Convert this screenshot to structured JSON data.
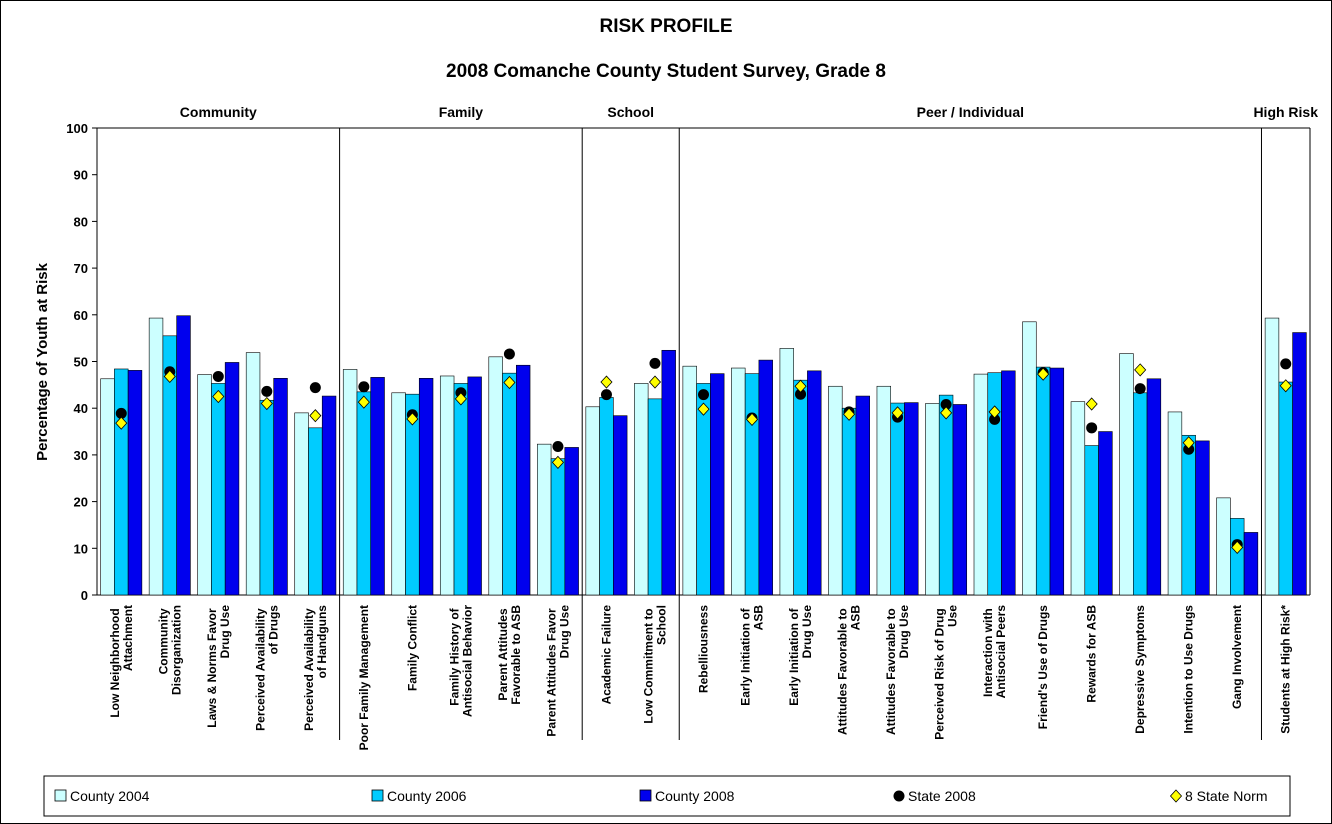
{
  "chart_data": {
    "type": "bar",
    "title": "RISK PROFILE",
    "subtitle": "2008 Comanche County Student Survey, Grade 8",
    "y_label": "Percentage of Youth at Risk",
    "sections": [
      {
        "name": "Community",
        "categories": [
          "Low Neighborhood Attachment",
          "Community Disorganization",
          "Laws & Norms Favor Drug Use",
          "Perceived Availability of Drugs",
          "Perceived Availability of Handguns"
        ]
      },
      {
        "name": "Family",
        "categories": [
          "Poor Family Management",
          "Family Conflict",
          "Family History of Antisocial Behavior",
          "Parent Attitudes Favorable to ASB",
          "Parent Attitudes Favor Drug Use"
        ]
      },
      {
        "name": "School",
        "categories": [
          "Academic Failure",
          "Low Commitment to School"
        ]
      },
      {
        "name": "Peer / Individual",
        "categories": [
          "Rebelliousness",
          "Early Initiation of ASB",
          "Early Initiation of Drug Use",
          "Attitudes Favorable to ASB",
          "Attitudes Favorable to Drug Use",
          "Perceived Risk of Drug Use",
          "Interaction with Antisocial Peers",
          "Friend's Use of Drugs",
          "Rewards for ASB",
          "Depressive Symptoms",
          "Intention to Use Drugs",
          "Gang Involvement"
        ]
      },
      {
        "name": "High Risk",
        "categories": [
          "Students at High Risk*"
        ]
      }
    ],
    "series": [
      {
        "name": "County 2004",
        "marker": "bar",
        "color": "#ccffff",
        "values": [
          46.3,
          59.3,
          47.2,
          51.9,
          39.0,
          48.3,
          43.3,
          46.9,
          51.0,
          32.3,
          40.3,
          45.3,
          49.0,
          48.6,
          52.8,
          44.7,
          44.7,
          41.0,
          47.3,
          58.5,
          41.4,
          51.7,
          39.2,
          20.8,
          59.3
        ]
      },
      {
        "name": "County 2006",
        "marker": "bar",
        "color": "#00ccff",
        "values": [
          48.4,
          55.5,
          45.3,
          41.7,
          35.8,
          43.5,
          43.0,
          45.3,
          47.5,
          29.2,
          42.3,
          42.0,
          45.3,
          47.4,
          46.0,
          40.0,
          41.1,
          42.8,
          47.6,
          48.8,
          32.0,
          43.3,
          34.2,
          16.4,
          45.6
        ]
      },
      {
        "name": "County 2008",
        "marker": "bar",
        "color": "#0000ee",
        "values": [
          48.1,
          59.8,
          49.8,
          46.4,
          42.6,
          46.6,
          46.4,
          46.7,
          49.2,
          31.6,
          38.4,
          52.4,
          47.4,
          50.3,
          48.0,
          42.6,
          41.2,
          40.8,
          48.0,
          48.6,
          35.0,
          46.3,
          33.0,
          13.4,
          56.2
        ]
      },
      {
        "name": "State 2008",
        "marker": "circle",
        "color": "#000000",
        "values": [
          38.9,
          47.8,
          46.8,
          43.6,
          44.4,
          44.6,
          38.6,
          43.3,
          51.6,
          31.8,
          42.9,
          49.6,
          42.9,
          37.9,
          43.0,
          39.2,
          38.1,
          40.8,
          37.6,
          47.6,
          35.8,
          44.2,
          31.2,
          10.8,
          49.5
        ]
      },
      {
        "name": "8 State Norm",
        "marker": "diamond",
        "color": "#ffff00",
        "values": [
          36.8,
          46.8,
          42.5,
          41.0,
          38.4,
          41.3,
          37.7,
          42.0,
          45.5,
          28.4,
          45.6,
          45.6,
          39.8,
          37.6,
          44.7,
          38.7,
          39.0,
          39.0,
          39.2,
          47.3,
          40.9,
          48.2,
          32.6,
          10.2,
          44.8
        ]
      }
    ],
    "ylim": [
      0,
      100
    ],
    "yticks": [
      0,
      10,
      20,
      30,
      40,
      50,
      60,
      70,
      80,
      90,
      100
    ],
    "grid": false,
    "legend": "bottom"
  }
}
